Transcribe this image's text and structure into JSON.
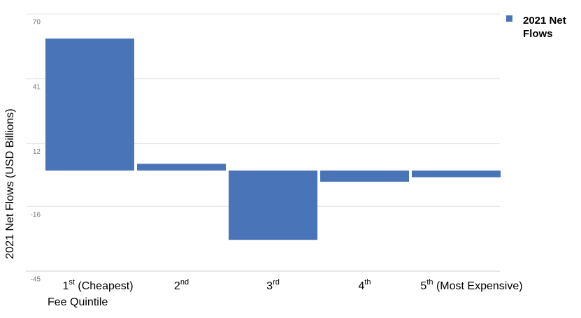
{
  "chart_data": {
    "type": "bar",
    "y_label": "2021 Net Flows (USD Billions)",
    "x_label": "Fee Quintile",
    "categories": [
      "1st (Cheapest)",
      "2nd",
      "3rd",
      "4th",
      "5th (Most Expensive)"
    ],
    "series": [
      {
        "name": "2021 Net Flows",
        "color": "#4a74b8",
        "values": [
          59,
          3,
          -31,
          -5,
          -3
        ]
      }
    ],
    "ylim": [
      -45,
      70
    ],
    "yticks": [
      -45,
      -16,
      12,
      41,
      70
    ],
    "grid": true
  }
}
